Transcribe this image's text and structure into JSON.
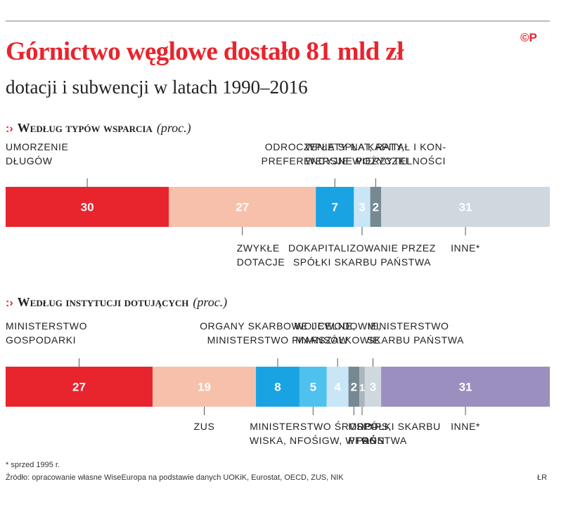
{
  "header": {
    "title": "Górnictwo węglowe dostało 81 mld zł",
    "subtitle": "dotacji i subwencji w latach 1990–2016",
    "logo": "©P",
    "brand_color": "#e8242d"
  },
  "chart_data": [
    {
      "type": "bar",
      "orientation": "horizontal-stacked",
      "section_title": "Według typów wsparcia",
      "unit": "(proc.)",
      "categories": [
        "UMORZENIE DŁUGÓW",
        "ZWYKŁE DOTACJE",
        "ODROCZENIE SPŁAT, RATY, PREFERENCYJNE POŻYCZKI",
        "DOKAPITALIZOWANIE PRZEZ SPÓŁKI SKARBU PAŃSTWA",
        "WPŁATY NA KAPITAŁ I KONWERSJE WIERZYTELNOŚCI",
        "INNE*"
      ],
      "values": [
        30,
        27,
        7,
        3,
        2,
        31
      ],
      "colors": [
        "#e8242d",
        "#f7c0aa",
        "#1aa3e3",
        "#c9e6f6",
        "#768993",
        "#cfd8de"
      ],
      "label_colors": [
        "#ffffff",
        "#ffffff",
        "#ffffff",
        "#ffffff",
        "#ffffff",
        "#ffffff"
      ],
      "label_lines": [
        [
          "UMORZENIE",
          "DŁUGÓW"
        ],
        [
          "ZWYKŁE",
          "DOTACJE"
        ],
        [
          "ODROCZENIE SPŁAT, RATY,",
          "PREFERENCYJNE POŻYCZKI"
        ],
        [
          "DOKAPITALIZOWANIE PRZEZ",
          "SPÓŁKI SKARBU PAŃSTWA"
        ],
        [
          "WPŁATY NA KAPITAŁ I KON-",
          "WERSJE WIERZYTELNOŚCI"
        ],
        [
          "INNE*"
        ]
      ],
      "label_side": [
        "top",
        "bottom",
        "top",
        "bottom",
        "top",
        "bottom"
      ],
      "label_align": [
        "left",
        "left",
        "center",
        "center",
        "center",
        "center"
      ]
    },
    {
      "type": "bar",
      "orientation": "horizontal-stacked",
      "section_title": "Według instytucji dotujących",
      "unit": "(proc.)",
      "categories": [
        "MINISTERSTWO GOSPODARKI",
        "ZUS",
        "ORGANY SKARBOWE I CELNE, MINISTERSTWO FINANSÓW",
        "MINISTERSTWO ŚRODOWISKA, NFOŚIGW, WFOŚ",
        "WOJEWODOWIE, MARSZAŁKOWIE",
        "MRPIPS, PFRON",
        "SPÓŁKI SKARBU PAŃSTWA",
        "MINISTERSTWO SKARBU PAŃSTWA",
        "INNE*"
      ],
      "values": [
        27,
        19,
        8,
        5,
        4,
        2,
        1,
        3,
        31
      ],
      "colors": [
        "#e8242d",
        "#f7c0aa",
        "#1aa3e3",
        "#4fc1ef",
        "#c9e6f6",
        "#768993",
        "#aab6bd",
        "#cfd8de",
        "#9b8fbf"
      ],
      "label_colors": [
        "#ffffff",
        "#ffffff",
        "#ffffff",
        "#ffffff",
        "#ffffff",
        "#ffffff",
        "#ffffff",
        "#ffffff",
        "#ffffff"
      ],
      "label_lines": [
        [
          "MINISTERSTWO",
          "GOSPODARKI"
        ],
        [
          "ZUS"
        ],
        [
          "ORGANY SKARBOWE I CELNE,",
          "MINISTERSTWO FINANSÓW"
        ],
        [
          "MINISTERSTWO ŚRODO-",
          "WISKA, NFOŚIGW, WFOŚ"
        ],
        [
          "WOJEWODOWIE,",
          "MARSZAŁKOWIE"
        ],
        [
          "MRPIPS,",
          "PFRON"
        ],
        [
          "SPÓŁKI SKARBU",
          "PAŃSTWA"
        ],
        [
          "MINISTERSTWO",
          "SKARBU PAŃSTWA"
        ],
        [
          "INNE*"
        ]
      ],
      "label_side": [
        "top",
        "bottom",
        "top",
        "bottom",
        "top",
        "bottom",
        "bottom",
        "top",
        "bottom"
      ],
      "label_align": [
        "left",
        "center",
        "center",
        "center",
        "center",
        "left",
        "left",
        "left",
        "center"
      ]
    }
  ],
  "footer": {
    "footnote": "* sprzed 1995 r.",
    "source": "Źródło: opracowanie własne WiseEuropa na podstawie danych UOKiK, Eurostat, OECD, ZUS, NIK",
    "credit": "ŁR"
  }
}
